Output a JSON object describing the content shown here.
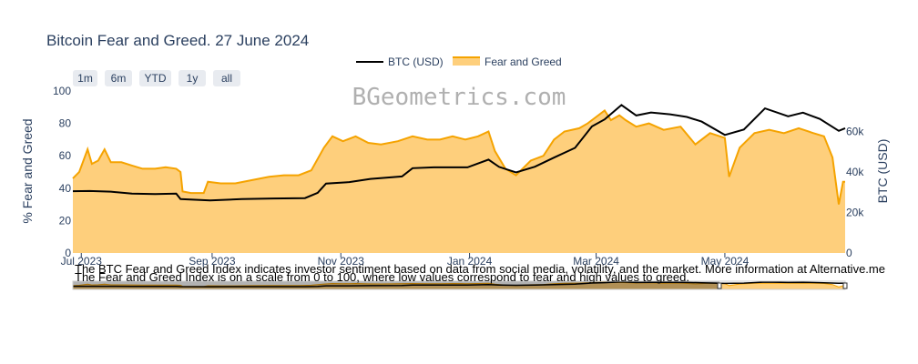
{
  "chart_data": {
    "type": "area",
    "title": "Bitcoin Fear and Greed. 27 June 2024",
    "watermark": "BGeometrics.com",
    "y_left_label": "% Fear and Greed",
    "y_right_label": "BTC (USD)",
    "y_left_range": [
      0,
      100
    ],
    "y_right_range": [
      0,
      80000
    ],
    "y_left_ticks": [
      "0",
      "20",
      "40",
      "60",
      "80",
      "100"
    ],
    "y_right_ticks": [
      "0",
      "20k",
      "40k",
      "60k"
    ],
    "x_ticks": [
      "Jul 2023",
      "Sep 2023",
      "Nov 2023",
      "Jan 2024",
      "Mar 2024",
      "May 2024"
    ],
    "x_range": [
      "2023-06-27",
      "2024-06-27"
    ],
    "grid": false,
    "legend_placement": "top-center",
    "range_buttons": [
      "1m",
      "6m",
      "YTD",
      "1y",
      "all"
    ],
    "notes": [
      "The BTC Fear and Greed Index indicates investor sentiment based on data from social media, volatility, and the market. More information at Alternative.me",
      "The Fear and Greed Index is on a scale from 0 to 100, where low values correspond to fear and high values to greed."
    ],
    "colors": {
      "fear_greed_line": "#f5a300",
      "fear_greed_fill": "#fecf7c",
      "btc_line": "#000000",
      "text": "#2a3f5f"
    },
    "series": [
      {
        "name": "Fear and Greed",
        "axis": "left",
        "points": [
          [
            "2023-06-27",
            46
          ],
          [
            "2023-06-30",
            50
          ],
          [
            "2023-07-04",
            64
          ],
          [
            "2023-07-06",
            55
          ],
          [
            "2023-07-09",
            57
          ],
          [
            "2023-07-12",
            64
          ],
          [
            "2023-07-15",
            56
          ],
          [
            "2023-07-20",
            56
          ],
          [
            "2023-07-25",
            54
          ],
          [
            "2023-07-30",
            52
          ],
          [
            "2023-08-05",
            52
          ],
          [
            "2023-08-10",
            53
          ],
          [
            "2023-08-15",
            52
          ],
          [
            "2023-08-17",
            50
          ],
          [
            "2023-08-18",
            38
          ],
          [
            "2023-08-22",
            37
          ],
          [
            "2023-08-28",
            37
          ],
          [
            "2023-08-30",
            44
          ],
          [
            "2023-09-05",
            43
          ],
          [
            "2023-09-12",
            43
          ],
          [
            "2023-09-20",
            45
          ],
          [
            "2023-09-28",
            47
          ],
          [
            "2023-10-05",
            48
          ],
          [
            "2023-10-12",
            48
          ],
          [
            "2023-10-18",
            51
          ],
          [
            "2023-10-24",
            65
          ],
          [
            "2023-10-28",
            72
          ],
          [
            "2023-11-02",
            69
          ],
          [
            "2023-11-08",
            72
          ],
          [
            "2023-11-14",
            68
          ],
          [
            "2023-11-20",
            67
          ],
          [
            "2023-11-28",
            69
          ],
          [
            "2023-12-05",
            72
          ],
          [
            "2023-12-12",
            70
          ],
          [
            "2023-12-18",
            70
          ],
          [
            "2023-12-24",
            72
          ],
          [
            "2023-12-30",
            70
          ],
          [
            "2024-01-05",
            72
          ],
          [
            "2024-01-10",
            75
          ],
          [
            "2024-01-13",
            63
          ],
          [
            "2024-01-18",
            52
          ],
          [
            "2024-01-23",
            48
          ],
          [
            "2024-01-30",
            57
          ],
          [
            "2024-02-05",
            60
          ],
          [
            "2024-02-10",
            70
          ],
          [
            "2024-02-15",
            75
          ],
          [
            "2024-02-22",
            77
          ],
          [
            "2024-02-26",
            80
          ],
          [
            "2024-03-01",
            84
          ],
          [
            "2024-03-05",
            88
          ],
          [
            "2024-03-08",
            82
          ],
          [
            "2024-03-12",
            85
          ],
          [
            "2024-03-15",
            82
          ],
          [
            "2024-03-20",
            78
          ],
          [
            "2024-03-26",
            80
          ],
          [
            "2024-04-02",
            76
          ],
          [
            "2024-04-10",
            78
          ],
          [
            "2024-04-17",
            67
          ],
          [
            "2024-04-24",
            74
          ],
          [
            "2024-05-01",
            71
          ],
          [
            "2024-05-03",
            47
          ],
          [
            "2024-05-08",
            65
          ],
          [
            "2024-05-15",
            74
          ],
          [
            "2024-05-22",
            76
          ],
          [
            "2024-05-29",
            74
          ],
          [
            "2024-06-05",
            77
          ],
          [
            "2024-06-12",
            74
          ],
          [
            "2024-06-17",
            72
          ],
          [
            "2024-06-21",
            59
          ],
          [
            "2024-06-24",
            30
          ],
          [
            "2024-06-26",
            44
          ],
          [
            "2024-06-27",
            44
          ]
        ]
      },
      {
        "name": "BTC (USD)",
        "axis": "right",
        "points": [
          [
            "2023-06-27",
            30500
          ],
          [
            "2023-07-05",
            30600
          ],
          [
            "2023-07-15",
            30300
          ],
          [
            "2023-07-25",
            29300
          ],
          [
            "2023-08-05",
            29100
          ],
          [
            "2023-08-15",
            29300
          ],
          [
            "2023-08-17",
            26600
          ],
          [
            "2023-08-31",
            26000
          ],
          [
            "2023-09-15",
            26600
          ],
          [
            "2023-09-30",
            26900
          ],
          [
            "2023-10-15",
            27100
          ],
          [
            "2023-10-21",
            29700
          ],
          [
            "2023-10-25",
            34300
          ],
          [
            "2023-11-05",
            35000
          ],
          [
            "2023-11-15",
            36600
          ],
          [
            "2023-11-30",
            37800
          ],
          [
            "2023-12-05",
            41900
          ],
          [
            "2023-12-15",
            42300
          ],
          [
            "2023-12-31",
            42300
          ],
          [
            "2024-01-10",
            46100
          ],
          [
            "2024-01-15",
            42500
          ],
          [
            "2024-01-23",
            39800
          ],
          [
            "2024-02-01",
            42600
          ],
          [
            "2024-02-10",
            47100
          ],
          [
            "2024-02-20",
            51900
          ],
          [
            "2024-02-28",
            62500
          ],
          [
            "2024-03-05",
            66000
          ],
          [
            "2024-03-13",
            73100
          ],
          [
            "2024-03-20",
            67900
          ],
          [
            "2024-03-27",
            69400
          ],
          [
            "2024-04-05",
            68500
          ],
          [
            "2024-04-13",
            67200
          ],
          [
            "2024-04-20",
            64900
          ],
          [
            "2024-05-01",
            58300
          ],
          [
            "2024-05-10",
            61000
          ],
          [
            "2024-05-20",
            71400
          ],
          [
            "2024-05-31",
            67500
          ],
          [
            "2024-06-07",
            69300
          ],
          [
            "2024-06-15",
            66200
          ],
          [
            "2024-06-24",
            60300
          ],
          [
            "2024-06-27",
            61600
          ]
        ]
      }
    ]
  }
}
